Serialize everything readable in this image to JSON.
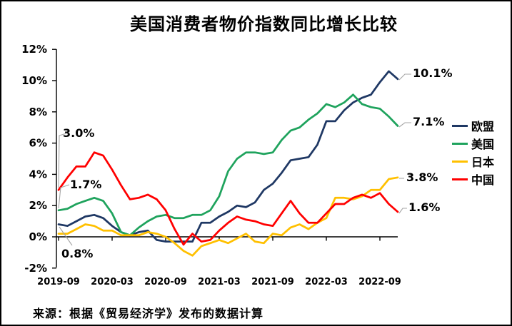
{
  "title": "美国消费者物价指数同比增长比较",
  "source": "来源：根据《贸易经济学》发布的数据计算",
  "colors": {
    "eu": "#1f3864",
    "us": "#1fa35d",
    "jp": "#ffc000",
    "cn": "#ff0000",
    "leader": "#a6a6a6",
    "axis": "#000000"
  },
  "chart_data": {
    "type": "line",
    "title": "美国消费者物价指数同比增长比较",
    "ylabel": "",
    "xlabel": "",
    "ylim": [
      -2,
      12
    ],
    "y_step": 2,
    "y_tick_labels": [
      "12%",
      "10%",
      "8%",
      "6%",
      "4%",
      "2%",
      "0%",
      "-2%"
    ],
    "x_tick_labels": [
      "2019-09",
      "2020-03",
      "2020-09",
      "2021-03",
      "2021-09",
      "2022-03",
      "2022-09"
    ],
    "x": [
      "2019-09",
      "2019-10",
      "2019-11",
      "2019-12",
      "2020-01",
      "2020-02",
      "2020-03",
      "2020-04",
      "2020-05",
      "2020-06",
      "2020-07",
      "2020-08",
      "2020-09",
      "2020-10",
      "2020-11",
      "2020-12",
      "2021-01",
      "2021-02",
      "2021-03",
      "2021-04",
      "2021-05",
      "2021-06",
      "2021-07",
      "2021-08",
      "2021-09",
      "2021-10",
      "2021-11",
      "2021-12",
      "2022-01",
      "2022-02",
      "2022-03",
      "2022-04",
      "2022-05",
      "2022-06",
      "2022-07",
      "2022-08",
      "2022-09",
      "2022-10",
      "2022-11"
    ],
    "grid": false,
    "legend_position": "right",
    "series": [
      {
        "id": "eu",
        "name": "欧盟",
        "color": "#1f3864",
        "values": [
          0.8,
          0.7,
          1.0,
          1.3,
          1.4,
          1.2,
          0.7,
          0.3,
          0.1,
          0.3,
          0.4,
          -0.2,
          -0.3,
          -0.3,
          -0.3,
          -0.3,
          0.9,
          0.9,
          1.3,
          1.6,
          2.0,
          1.9,
          2.2,
          3.0,
          3.4,
          4.1,
          4.9,
          5.0,
          5.1,
          5.9,
          7.4,
          7.4,
          8.1,
          8.6,
          8.9,
          9.1,
          9.9,
          10.6,
          10.1
        ]
      },
      {
        "id": "us",
        "name": "美国",
        "color": "#1fa35d",
        "values": [
          1.7,
          1.8,
          2.1,
          2.3,
          2.5,
          2.3,
          1.5,
          0.3,
          0.1,
          0.6,
          1.0,
          1.3,
          1.4,
          1.2,
          1.2,
          1.4,
          1.4,
          1.7,
          2.6,
          4.2,
          5.0,
          5.4,
          5.4,
          5.3,
          5.4,
          6.2,
          6.8,
          7.0,
          7.5,
          7.9,
          8.5,
          8.3,
          8.6,
          9.1,
          8.5,
          8.3,
          8.2,
          7.7,
          7.1
        ]
      },
      {
        "id": "jp",
        "name": "日本",
        "color": "#ffc000",
        "values": [
          0.2,
          0.2,
          0.5,
          0.8,
          0.7,
          0.4,
          0.4,
          0.1,
          0.1,
          0.1,
          0.3,
          0.2,
          0.0,
          -0.4,
          -0.9,
          -1.2,
          -0.6,
          -0.4,
          -0.2,
          -0.4,
          -0.1,
          0.2,
          -0.3,
          -0.4,
          0.2,
          0.1,
          0.6,
          0.8,
          0.5,
          0.9,
          1.2,
          2.5,
          2.5,
          2.4,
          2.6,
          3.0,
          3.0,
          3.7,
          3.8
        ]
      },
      {
        "id": "cn",
        "name": "中国",
        "color": "#ff0000",
        "values": [
          3.0,
          3.8,
          4.5,
          4.5,
          5.4,
          5.2,
          4.3,
          3.3,
          2.4,
          2.5,
          2.7,
          2.4,
          1.7,
          0.5,
          -0.5,
          0.2,
          -0.3,
          -0.2,
          0.4,
          0.9,
          1.3,
          1.1,
          1.0,
          0.8,
          0.7,
          1.5,
          2.3,
          1.5,
          0.9,
          0.9,
          1.5,
          2.1,
          2.1,
          2.5,
          2.7,
          2.5,
          2.8,
          2.1,
          1.6
        ]
      }
    ],
    "annotations": [
      {
        "text": "3.0%",
        "series": "cn",
        "index": 0
      },
      {
        "text": "1.7%",
        "series": "us",
        "index": 0
      },
      {
        "text": "0.8%",
        "series": "eu",
        "index": 0
      },
      {
        "text": "10.1%",
        "series": "eu",
        "index": 38
      },
      {
        "text": "7.1%",
        "series": "us",
        "index": 38
      },
      {
        "text": "3.8%",
        "series": "jp",
        "index": 38
      },
      {
        "text": "1.6%",
        "series": "cn",
        "index": 38
      }
    ],
    "legend": [
      "欧盟",
      "美国",
      "日本",
      "中国"
    ]
  }
}
